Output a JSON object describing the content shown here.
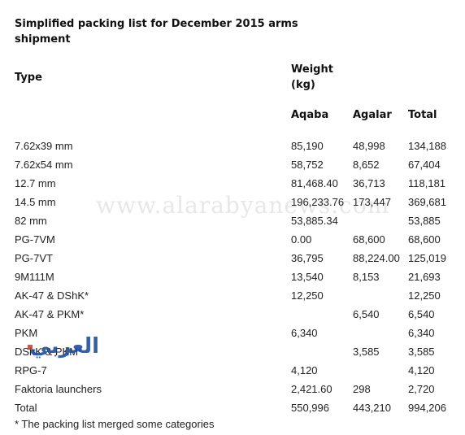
{
  "title": "Simplified packing list for December 2015 arms shipment",
  "headers": {
    "type": "Type",
    "weight": "Weight (kg)",
    "aqaba": "Aqaba",
    "agalar": "Agalar",
    "total": "Total"
  },
  "rows": [
    {
      "type": "7.62x39 mm",
      "aqaba": "85,190",
      "agalar": "48,998",
      "total": "134,188"
    },
    {
      "type": "7.62x54 mm",
      "aqaba": "58,752",
      "agalar": "8,652",
      "total": "67,404"
    },
    {
      "type": "12.7 mm",
      "aqaba": "81,468.40",
      "agalar": "36,713",
      "total": "118,181"
    },
    {
      "type": "14.5 mm",
      "aqaba": "196,233.76",
      "agalar": "173,447",
      "total": "369,681"
    },
    {
      "type": "82 mm",
      "aqaba": "53,885.34",
      "agalar": "",
      "total": "53,885"
    },
    {
      "type": "PG-7VM",
      "aqaba": "0.00",
      "agalar": "68,600",
      "total": "68,600"
    },
    {
      "type": "PG-7VT",
      "aqaba": "36,795",
      "agalar": "88,224.00",
      "total": "125,019"
    },
    {
      "type": "9M111M",
      "aqaba": "13,540",
      "agalar": "8,153",
      "total": "21,693"
    },
    {
      "type": "AK-47 & DShK*",
      "aqaba": "12,250",
      "agalar": "",
      "total": "12,250"
    },
    {
      "type": "AK-47 & PKM*",
      "aqaba": "",
      "agalar": "6,540",
      "total": "6,540"
    },
    {
      "type": "PKM",
      "aqaba": "6,340",
      "agalar": "",
      "total": "6,340"
    },
    {
      "type": "DShK & PKM*",
      "aqaba": "",
      "agalar": "3,585",
      "total": "3,585"
    },
    {
      "type": "RPG-7",
      "aqaba": "4,120",
      "agalar": "",
      "total": "4,120"
    },
    {
      "type": "Faktoria launchers",
      "aqaba": "2,421.60",
      "agalar": "298",
      "total": "2,720"
    },
    {
      "type": "Total",
      "aqaba": "550,996",
      "agalar": "443,210",
      "total": "994,206"
    }
  ],
  "footnote": "* The packing list merged some categories",
  "watermark": "www.alarabyanews.com",
  "logo_text": "العربي"
}
